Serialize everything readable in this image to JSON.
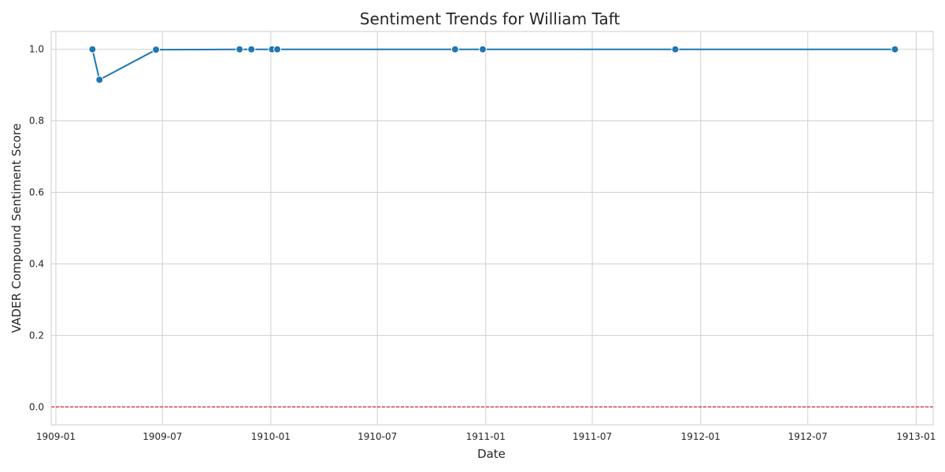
{
  "chart_data": {
    "type": "line",
    "title": "Sentiment Trends for William Taft",
    "xlabel": "Date",
    "ylabel": "VADER Compound Sentiment Score",
    "x_ticks": [
      "1909-01",
      "1909-07",
      "1910-01",
      "1910-07",
      "1911-01",
      "1911-07",
      "1912-01",
      "1912-07",
      "1913-01"
    ],
    "y_ticks": [
      "0.0",
      "0.2",
      "0.4",
      "0.6",
      "0.8",
      "1.0"
    ],
    "xlim": [
      "1908-12-24",
      "1913-01-30"
    ],
    "ylim": [
      -0.05,
      1.05
    ],
    "grid": true,
    "series": [
      {
        "color": "#1f77b4",
        "marker": "circle",
        "points": [
          {
            "x": "1909-03-04",
            "y": 1.0
          },
          {
            "x": "1909-03-16",
            "y": 0.915
          },
          {
            "x": "1909-06-20",
            "y": 0.999
          },
          {
            "x": "1909-11-09",
            "y": 1.0
          },
          {
            "x": "1909-11-29",
            "y": 1.0
          },
          {
            "x": "1910-01-03",
            "y": 1.0
          },
          {
            "x": "1910-01-12",
            "y": 1.0
          },
          {
            "x": "1910-11-10",
            "y": 1.0
          },
          {
            "x": "1910-12-27",
            "y": 1.0
          },
          {
            "x": "1911-11-19",
            "y": 1.0
          },
          {
            "x": "1912-11-26",
            "y": 1.0
          }
        ]
      }
    ],
    "reference_line": {
      "y": 0.0,
      "color": "#d62728",
      "style": "dashed"
    }
  }
}
